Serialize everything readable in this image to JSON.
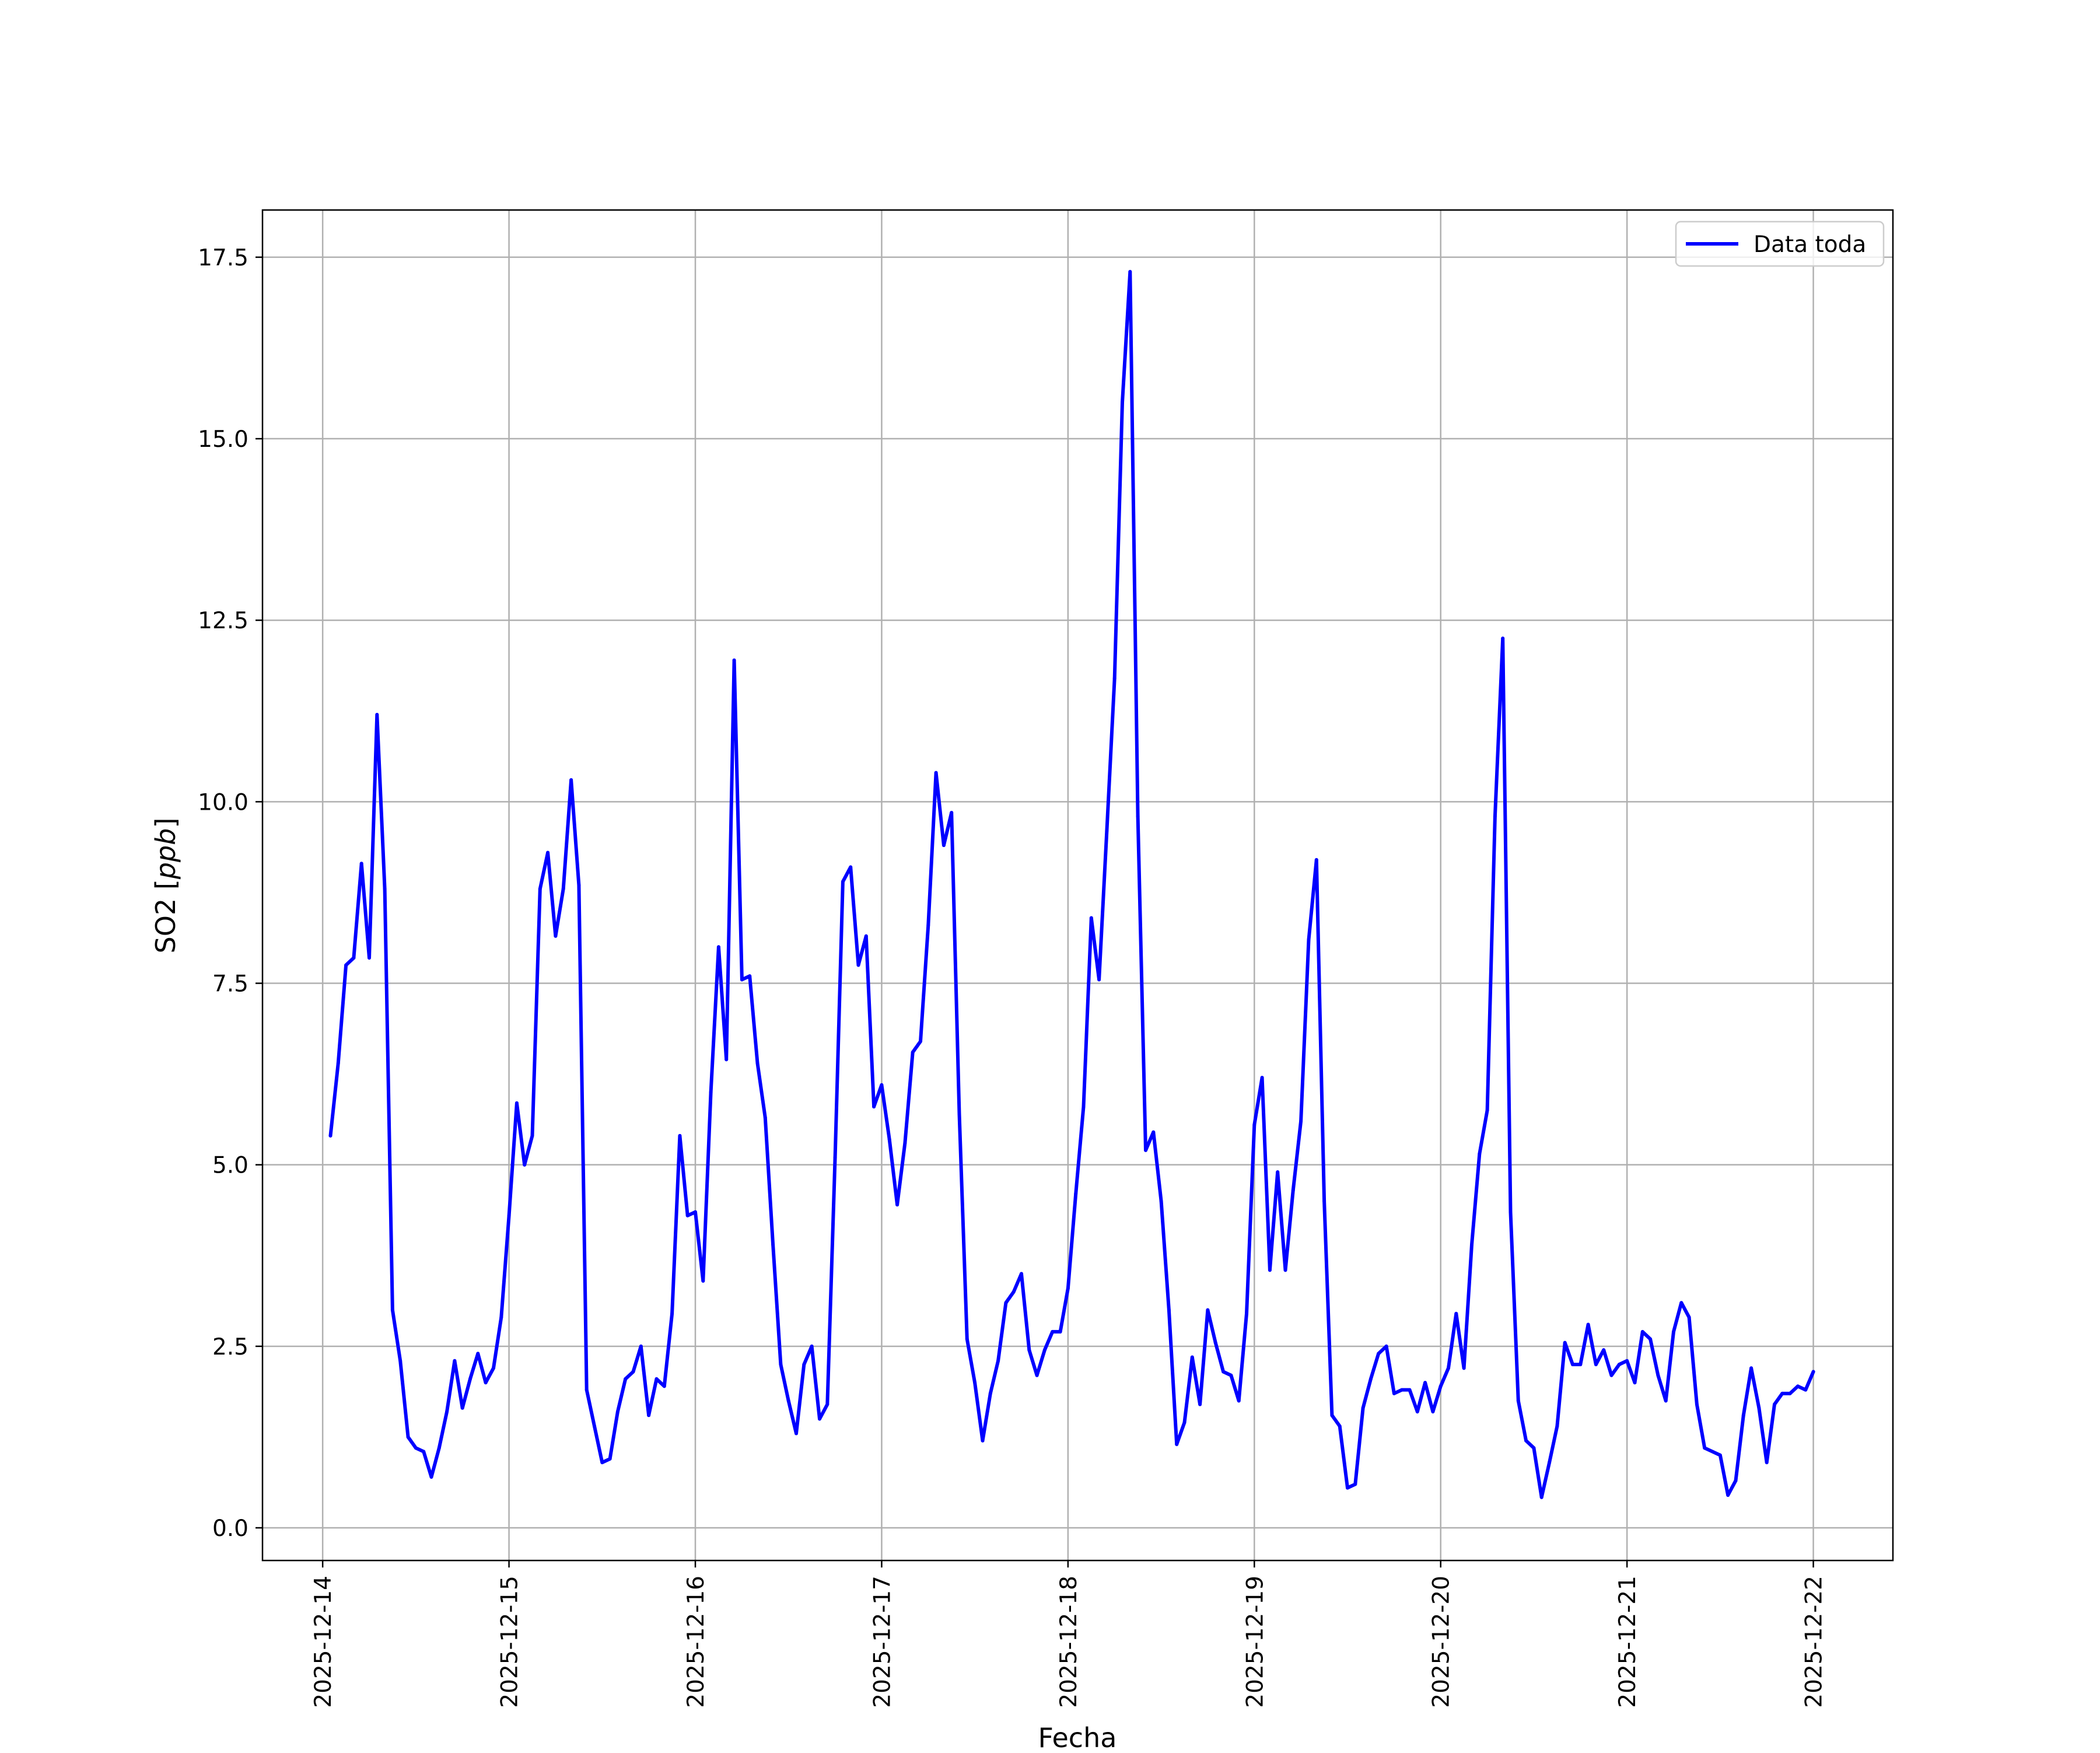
{
  "chart_data": {
    "type": "line",
    "title": "",
    "xlabel": "Fecha",
    "ylabel": "SO2 [ppb]",
    "ylabel_main": "SO2 ",
    "ylabel_unit": "ppb",
    "ylim": [
      -0.45,
      18.15
    ],
    "xlim": [
      "2025-12-13T16:15",
      "2025-12-22T10:15"
    ],
    "grid": true,
    "legend_position": "top-right",
    "x_ticks": [
      "2025-12-14",
      "2025-12-15",
      "2025-12-16",
      "2025-12-17",
      "2025-12-18",
      "2025-12-19",
      "2025-12-20",
      "2025-12-21",
      "2025-12-22"
    ],
    "y_ticks": [
      {
        "value": 0.0,
        "label": "0.0"
      },
      {
        "value": 2.5,
        "label": "2.5"
      },
      {
        "value": 5.0,
        "label": "5.0"
      },
      {
        "value": 7.5,
        "label": "7.5"
      },
      {
        "value": 10.0,
        "label": "10.0"
      },
      {
        "value": 12.5,
        "label": "12.5"
      },
      {
        "value": 15.0,
        "label": "15.0"
      },
      {
        "value": 17.5,
        "label": "17.5"
      }
    ],
    "series": [
      {
        "name": "Data toda",
        "color": "#0000ff",
        "x_start": "2025-12-14T01:00",
        "x_step_hours": 1,
        "values": [
          5.4,
          6.4,
          7.75,
          7.85,
          9.15,
          7.85,
          11.2,
          8.8,
          3.0,
          2.3,
          1.25,
          1.1,
          1.05,
          0.7,
          1.1,
          1.6,
          2.3,
          1.65,
          2.05,
          2.4,
          2.0,
          2.2,
          2.9,
          4.3,
          5.85,
          5.0,
          5.4,
          8.8,
          9.3,
          8.15,
          8.8,
          10.3,
          8.85,
          1.9,
          1.4,
          0.9,
          0.95,
          1.6,
          2.05,
          2.15,
          2.5,
          1.55,
          2.05,
          1.95,
          2.95,
          5.4,
          4.3,
          4.35,
          3.4,
          6.0,
          8.0,
          6.45,
          11.95,
          7.55,
          7.6,
          6.4,
          5.65,
          3.9,
          2.25,
          1.75,
          1.3,
          2.25,
          2.5,
          1.5,
          1.7,
          5.1,
          8.9,
          9.1,
          7.75,
          8.15,
          5.8,
          6.1,
          5.35,
          4.45,
          5.3,
          6.55,
          6.7,
          8.3,
          10.4,
          9.4,
          9.85,
          5.7,
          2.6,
          2.0,
          1.2,
          1.85,
          2.3,
          3.1,
          3.25,
          3.5,
          2.45,
          2.1,
          2.45,
          2.7,
          2.7,
          3.3,
          4.6,
          5.8,
          8.4,
          7.55,
          9.6,
          11.7,
          15.5,
          17.3,
          9.8,
          5.2,
          5.45,
          4.5,
          3.0,
          1.15,
          1.45,
          2.35,
          1.7,
          3.0,
          2.55,
          2.15,
          2.1,
          1.75,
          2.95,
          5.55,
          6.2,
          3.55,
          4.9,
          3.55,
          4.65,
          5.6,
          8.1,
          9.2,
          4.5,
          1.55,
          1.4,
          0.55,
          0.6,
          1.65,
          2.05,
          2.4,
          2.5,
          1.85,
          1.9,
          1.9,
          1.6,
          2.0,
          1.6,
          1.95,
          2.2,
          2.95,
          2.2,
          3.9,
          5.15,
          5.75,
          9.8,
          12.25,
          4.35,
          1.75,
          1.2,
          1.1,
          0.42,
          0.9,
          1.4,
          2.55,
          2.25,
          2.25,
          2.8,
          2.25,
          2.45,
          2.1,
          2.25,
          2.3,
          2.0,
          2.7,
          2.6,
          2.1,
          1.75,
          2.7,
          3.1,
          2.9,
          1.7,
          1.1,
          1.05,
          1.0,
          0.45,
          0.65,
          1.55,
          2.2,
          1.65,
          0.9,
          1.7,
          1.85,
          1.85,
          1.95,
          1.9,
          2.15
        ]
      }
    ]
  }
}
